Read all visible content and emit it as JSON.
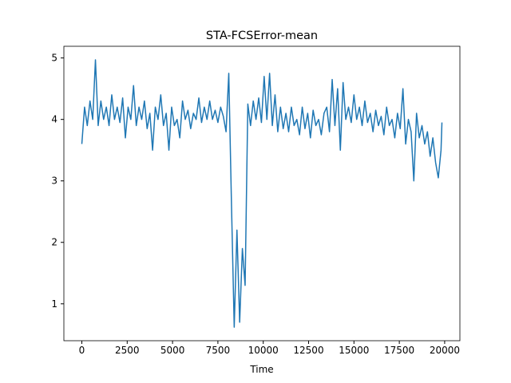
{
  "chart_data": {
    "type": "line",
    "title": "STA-FCSError-mean",
    "xlabel": "Time",
    "x": [
      0,
      150,
      300,
      450,
      600,
      750,
      900,
      1050,
      1200,
      1350,
      1500,
      1650,
      1800,
      1950,
      2100,
      2250,
      2400,
      2550,
      2700,
      2850,
      3000,
      3150,
      3300,
      3450,
      3600,
      3750,
      3900,
      4050,
      4200,
      4350,
      4500,
      4650,
      4800,
      4950,
      5100,
      5250,
      5400,
      5550,
      5700,
      5850,
      6000,
      6150,
      6300,
      6450,
      6600,
      6750,
      6900,
      7050,
      7200,
      7350,
      7500,
      7650,
      7800,
      7950,
      8100,
      8250,
      8400,
      8550,
      8700,
      8850,
      9000,
      9150,
      9300,
      9450,
      9600,
      9750,
      9900,
      10050,
      10200,
      10350,
      10500,
      10650,
      10800,
      10950,
      11100,
      11250,
      11400,
      11550,
      11700,
      11850,
      12000,
      12150,
      12300,
      12450,
      12600,
      12750,
      12900,
      13050,
      13200,
      13350,
      13500,
      13650,
      13800,
      13950,
      14100,
      14250,
      14400,
      14550,
      14700,
      14850,
      15000,
      15150,
      15300,
      15450,
      15600,
      15750,
      15900,
      16050,
      16200,
      16350,
      16500,
      16650,
      16800,
      16950,
      17100,
      17250,
      17400,
      17550,
      17700,
      17850,
      18000,
      18150,
      18300,
      18450,
      18600,
      18750,
      18900,
      19050,
      19200,
      19350,
      19500,
      19650,
      19800,
      19850
    ],
    "series": [
      {
        "color": "#1f77b4",
        "values": [
          3.6,
          4.2,
          3.9,
          4.3,
          4.0,
          4.97,
          3.9,
          4.3,
          4.0,
          4.2,
          3.9,
          4.4,
          4.0,
          4.2,
          3.95,
          4.35,
          3.7,
          4.2,
          4.0,
          4.55,
          3.9,
          4.2,
          4.0,
          4.3,
          3.85,
          4.1,
          3.5,
          4.2,
          4.0,
          4.4,
          3.9,
          4.1,
          3.5,
          4.2,
          3.9,
          4.0,
          3.7,
          4.3,
          4.0,
          4.15,
          3.85,
          4.1,
          4.0,
          4.35,
          3.95,
          4.2,
          4.0,
          4.3,
          4.0,
          4.15,
          3.95,
          4.2,
          4.05,
          3.8,
          4.75,
          2.6,
          0.62,
          2.2,
          0.7,
          1.9,
          1.3,
          4.25,
          3.9,
          4.3,
          4.0,
          4.35,
          3.95,
          4.7,
          4.0,
          4.75,
          3.9,
          4.4,
          3.8,
          4.2,
          3.85,
          4.1,
          3.8,
          4.2,
          3.9,
          4.0,
          3.75,
          4.2,
          3.85,
          4.1,
          3.7,
          4.15,
          3.9,
          4.0,
          3.75,
          4.1,
          4.2,
          3.8,
          4.65,
          3.9,
          4.5,
          3.5,
          4.6,
          4.0,
          4.2,
          3.95,
          4.4,
          4.0,
          4.2,
          3.9,
          4.3,
          3.95,
          4.1,
          3.8,
          4.15,
          3.9,
          4.05,
          3.75,
          4.2,
          3.9,
          4.0,
          3.7,
          4.1,
          3.85,
          4.5,
          3.6,
          4.0,
          3.8,
          3.0,
          4.1,
          3.7,
          3.9,
          3.6,
          3.8,
          3.4,
          3.7,
          3.3,
          3.05,
          3.5,
          3.95
        ]
      }
    ],
    "xlim": [
      -990,
      20840
    ],
    "ylim": [
      0.4,
      5.19
    ],
    "xticks": [
      0,
      2500,
      5000,
      7500,
      10000,
      12500,
      15000,
      17500,
      20000
    ],
    "yticks": [
      1,
      2,
      3,
      4,
      5
    ]
  }
}
